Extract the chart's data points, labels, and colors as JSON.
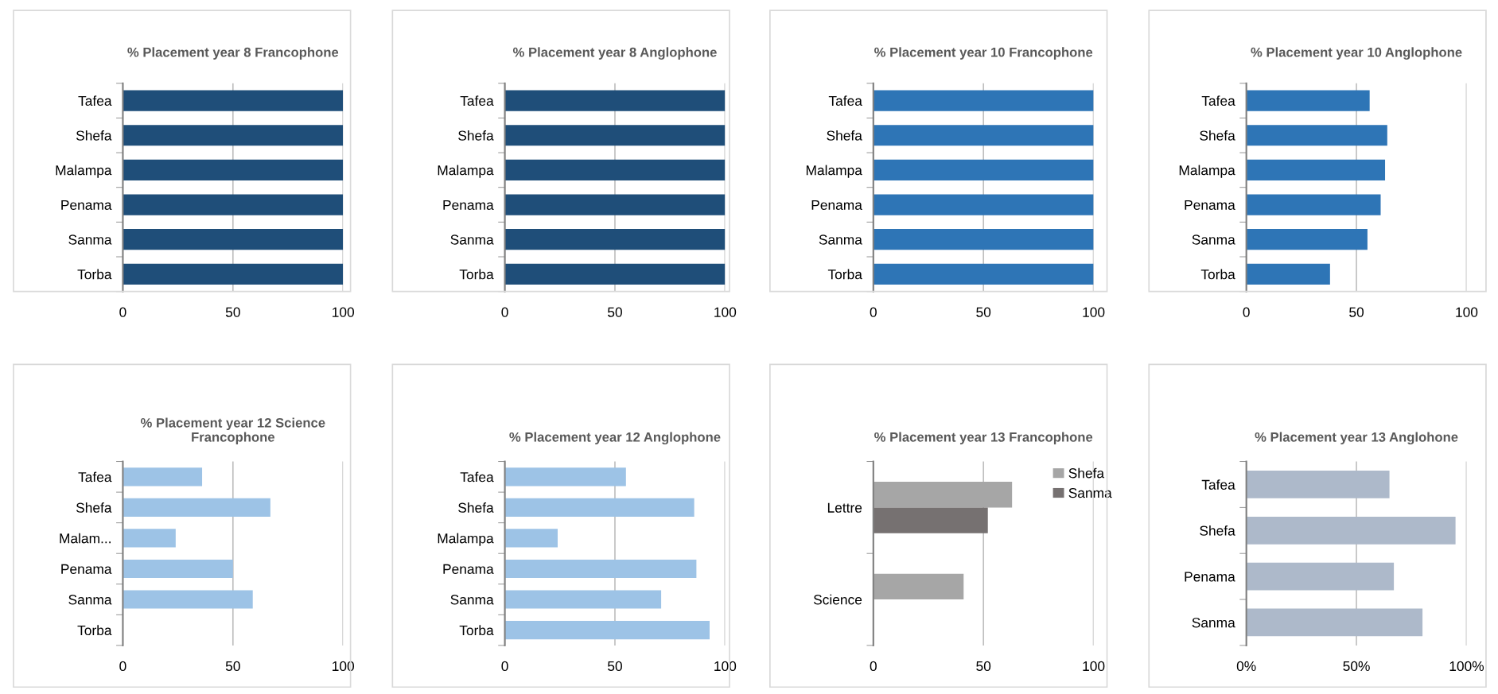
{
  "chart_data": [
    {
      "type": "bar",
      "orientation": "horizontal",
      "title": "% Placement year 8 Francophone",
      "categories": [
        "Tafea",
        "Shefa",
        "Malampa",
        "Penama",
        "Sanma",
        "Torba"
      ],
      "values": [
        100,
        100,
        100,
        100,
        100,
        100
      ],
      "color": "#1f4e79",
      "xlim": [
        0,
        100
      ],
      "xticks": [
        0,
        50,
        100
      ],
      "grid": "x"
    },
    {
      "type": "bar",
      "orientation": "horizontal",
      "title": "% Placement year 8 Anglophone",
      "categories": [
        "Tafea",
        "Shefa",
        "Malampa",
        "Penama",
        "Sanma",
        "Torba"
      ],
      "values": [
        100,
        100,
        100,
        100,
        100,
        100
      ],
      "color": "#1f4e79",
      "xlim": [
        0,
        100
      ],
      "xticks": [
        0,
        50,
        100
      ],
      "grid": "x"
    },
    {
      "type": "bar",
      "orientation": "horizontal",
      "title": "% Placement year 10 Francophone",
      "categories": [
        "Tafea",
        "Shefa",
        "Malampa",
        "Penama",
        "Sanma",
        "Torba"
      ],
      "values": [
        100,
        100,
        100,
        100,
        100,
        100
      ],
      "color": "#2e75b6",
      "xlim": [
        0,
        100
      ],
      "xticks": [
        0,
        50,
        100
      ],
      "grid": "x"
    },
    {
      "type": "bar",
      "orientation": "horizontal",
      "title": "% Placement year 10 Anglophone",
      "categories": [
        "Tafea",
        "Shefa",
        "Malampa",
        "Penama",
        "Sanma",
        "Torba"
      ],
      "values": [
        56,
        64,
        63,
        61,
        55,
        38
      ],
      "color": "#2e75b6",
      "xlim": [
        0,
        100
      ],
      "xticks": [
        0,
        50,
        100
      ],
      "grid": "x"
    },
    {
      "type": "bar",
      "orientation": "horizontal",
      "title": "% Placement year 12 Science\nFrancophone",
      "categories": [
        "Tafea",
        "Shefa",
        "Malam...",
        "Penama",
        "Sanma",
        "Torba"
      ],
      "values": [
        36,
        67,
        24,
        50,
        59,
        null
      ],
      "color": "#9dc3e6",
      "xlim": [
        0,
        100
      ],
      "xticks": [
        0,
        50,
        100
      ],
      "grid": "x"
    },
    {
      "type": "bar",
      "orientation": "horizontal",
      "title": "% Placement year 12 Anglophone",
      "categories": [
        "Tafea",
        "Shefa",
        "Malampa",
        "Penama",
        "Sanma",
        "Torba"
      ],
      "values": [
        55,
        86,
        24,
        87,
        71,
        93
      ],
      "color": "#9dc3e6",
      "xlim": [
        0,
        100
      ],
      "xticks": [
        0,
        50,
        100
      ],
      "grid": "x"
    },
    {
      "type": "bar",
      "orientation": "horizontal",
      "title": "% Placement year 13 Francophone",
      "categories": [
        "Lettre",
        "Science"
      ],
      "series": [
        {
          "name": "Shefa",
          "color": "#a6a6a6",
          "values": [
            63,
            41
          ]
        },
        {
          "name": "Sanma",
          "color": "#767171",
          "values": [
            52,
            null
          ]
        }
      ],
      "xlim": [
        0,
        100
      ],
      "xticks": [
        0,
        50,
        100
      ],
      "grid": "x",
      "legend": "top right"
    },
    {
      "type": "bar",
      "orientation": "horizontal",
      "title": "% Placement year 13 Anglohone",
      "categories": [
        "Tafea",
        "Shefa",
        "Penama",
        "Sanma"
      ],
      "values": [
        65,
        95,
        67,
        80
      ],
      "color": "#adb9ca",
      "xlim": [
        0,
        100
      ],
      "xticks": [
        {
          "value": 0,
          "label": "0%"
        },
        {
          "value": 50,
          "label": "50%"
        },
        {
          "value": 100,
          "label": "100%"
        }
      ],
      "grid": "x"
    }
  ]
}
